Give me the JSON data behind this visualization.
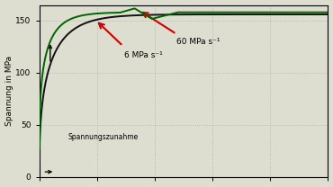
{
  "ylabel": "Spannung in MPa",
  "ylim": [
    0,
    165
  ],
  "xlim": [
    0,
    1.0
  ],
  "yticks": [
    0,
    50,
    100,
    150
  ],
  "background_color": "#deded0",
  "grid_color": "#aaaaaa",
  "curve_green_color": "#006600",
  "curve_dark_color": "#111111",
  "annotation_color": "#cc0000",
  "label_6MPa": "6 MPa s⁻¹",
  "label_60MPa": "60 MPa s⁻¹",
  "label_spannungszunahme": "Spannungszunahme"
}
